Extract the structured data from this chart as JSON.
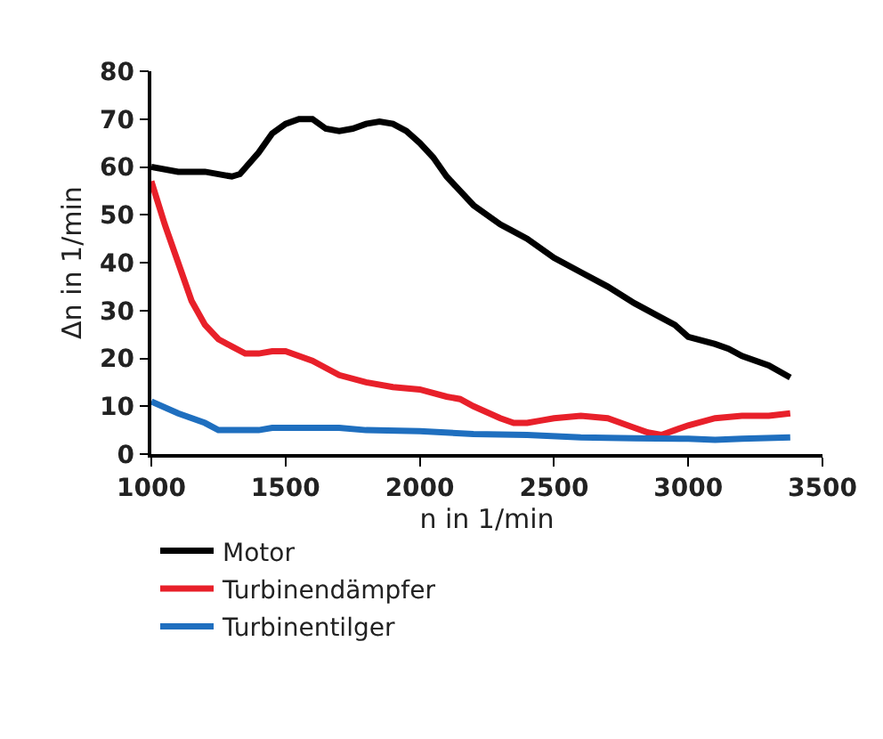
{
  "chart_data": {
    "type": "line",
    "xlabel": "n in 1/min",
    "ylabel": "Δn in 1/min",
    "xlim": [
      1000,
      3500
    ],
    "xticks": [
      1000,
      1500,
      2000,
      2500,
      3000,
      3500
    ],
    "ylim": [
      0,
      80
    ],
    "yticks": [
      0,
      10,
      20,
      30,
      40,
      50,
      60,
      70,
      80
    ],
    "grid": false,
    "legend": "bottom",
    "marker": "none",
    "line_style": "solid",
    "series": [
      {
        "name": "Motor",
        "color": "#000000",
        "x": [
          1000,
          1100,
          1200,
          1300,
          1330,
          1400,
          1450,
          1500,
          1550,
          1600,
          1650,
          1700,
          1750,
          1800,
          1850,
          1900,
          1950,
          2000,
          2050,
          2100,
          2150,
          2200,
          2300,
          2400,
          2500,
          2600,
          2700,
          2800,
          2900,
          2950,
          3000,
          3100,
          3150,
          3200,
          3300,
          3380
        ],
        "values": [
          60,
          59,
          59,
          58,
          58.5,
          63,
          67,
          69,
          70,
          70,
          68,
          67.5,
          68,
          69,
          69.5,
          69,
          67.5,
          65,
          62,
          58,
          55,
          52,
          48,
          45,
          41,
          38,
          35,
          31.5,
          28.5,
          27,
          24.5,
          23,
          22,
          20.5,
          18.5,
          16
        ]
      },
      {
        "name": "Turbinendämpfer",
        "color": "#e8202a",
        "x": [
          1000,
          1050,
          1100,
          1150,
          1200,
          1250,
          1300,
          1350,
          1400,
          1450,
          1500,
          1600,
          1650,
          1700,
          1800,
          1900,
          2000,
          2100,
          2150,
          2200,
          2300,
          2350,
          2400,
          2450,
          2500,
          2600,
          2700,
          2800,
          2850,
          2900,
          2950,
          3000,
          3100,
          3200,
          3300,
          3380
        ],
        "values": [
          57,
          48,
          40,
          32,
          27,
          24,
          22.5,
          21,
          21,
          21.5,
          21.5,
          19.5,
          18,
          16.5,
          15,
          14,
          13.5,
          12,
          11.5,
          10,
          7.5,
          6.5,
          6.5,
          7,
          7.5,
          8,
          7.5,
          5.5,
          4.5,
          4,
          5,
          6,
          7.5,
          8,
          8,
          8.5
        ]
      },
      {
        "name": "Turbinentilger",
        "color": "#1f6fbf",
        "x": [
          1000,
          1100,
          1200,
          1250,
          1350,
          1400,
          1450,
          1600,
          1700,
          1800,
          2000,
          2200,
          2400,
          2600,
          2800,
          3000,
          3100,
          3200,
          3380
        ],
        "values": [
          11,
          8.5,
          6.5,
          5,
          5,
          5,
          5.5,
          5.5,
          5.5,
          5,
          4.8,
          4.2,
          4,
          3.5,
          3.3,
          3.2,
          3,
          3.2,
          3.5
        ]
      }
    ]
  }
}
